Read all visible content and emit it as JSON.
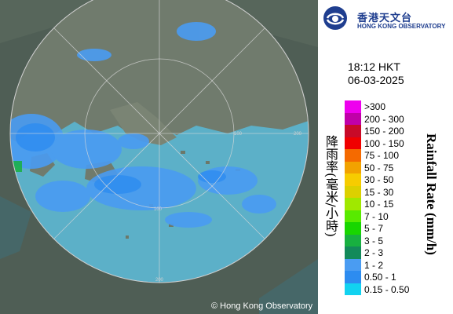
{
  "logo": {
    "name_zh": "香港天文台",
    "name_en": "HONG KONG OBSERVATORY",
    "colors": {
      "primary": "#1f3e8f"
    }
  },
  "timestamp": {
    "time": "18:12 HKT",
    "date": "06-03-2025"
  },
  "legend": {
    "title_zh": "降雨率(毫米/小時)",
    "title_en": "Rainfall Rate (mm/h)",
    "classes": [
      {
        "label": ">300",
        "color": "#ee00ee"
      },
      {
        "label": "200 - 300",
        "color": "#c000a8"
      },
      {
        "label": "150 - 200",
        "color": "#c80a28"
      },
      {
        "label": "100 - 150",
        "color": "#f00000"
      },
      {
        "label": "75 - 100",
        "color": "#f56a00"
      },
      {
        "label": "50 - 75",
        "color": "#f2a200"
      },
      {
        "label": "30 - 50",
        "color": "#f7cc00"
      },
      {
        "label": "15 - 30",
        "color": "#dcd000"
      },
      {
        "label": "10 - 15",
        "color": "#a0e800"
      },
      {
        "label": "7 - 10",
        "color": "#58ea00"
      },
      {
        "label": "5 - 7",
        "color": "#18d600"
      },
      {
        "label": "3 - 5",
        "color": "#18b040"
      },
      {
        "label": "2 - 3",
        "color": "#138a5a"
      },
      {
        "label": "1 - 2",
        "color": "#4a9cf2"
      },
      {
        "label": "0.50 - 1",
        "color": "#2d8cf0"
      },
      {
        "label": "0.15 - 0.50",
        "color": "#12d2f0"
      }
    ]
  },
  "map": {
    "range_ring_labels": [
      "100",
      "100",
      "200",
      "200"
    ],
    "copyright": "© Hong Kong Observatory",
    "colors": {
      "sea": "#5cb0c8",
      "land": "#6f7a6c",
      "outside": "#4b5a52"
    }
  }
}
